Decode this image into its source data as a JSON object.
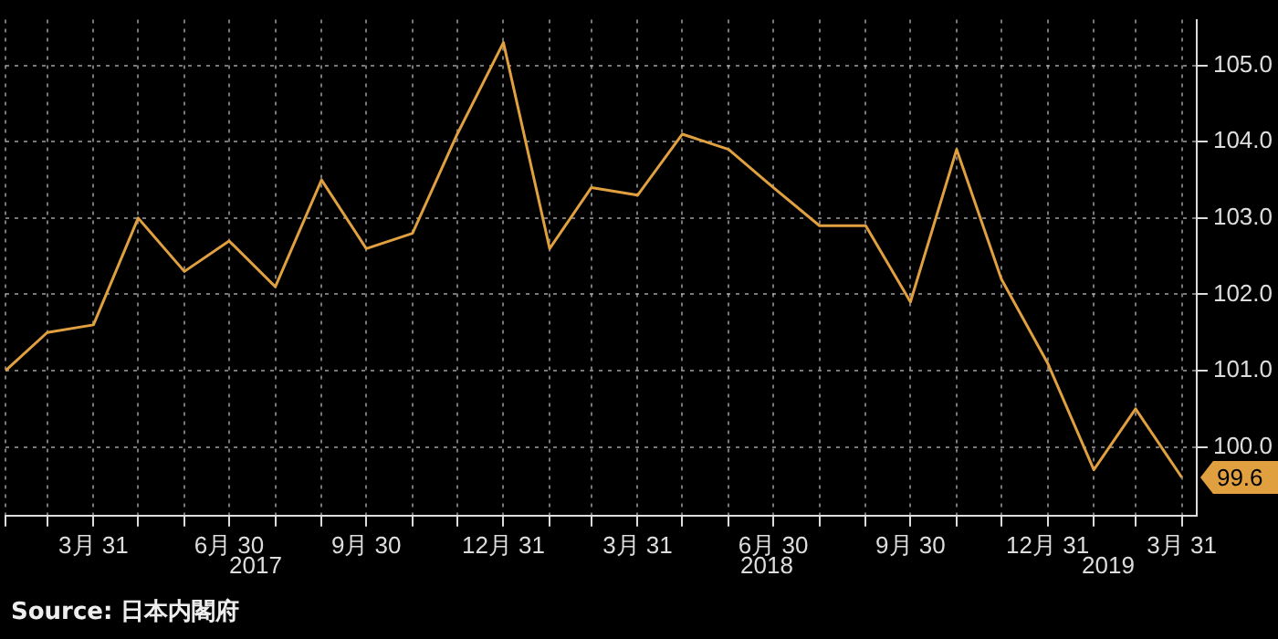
{
  "chart_data": {
    "type": "line",
    "x": [
      "2017-01-31",
      "2017-02-28",
      "2017-03-31",
      "2017-04-30",
      "2017-05-31",
      "2017-06-30",
      "2017-07-31",
      "2017-08-31",
      "2017-09-30",
      "2017-10-31",
      "2017-11-30",
      "2017-12-31",
      "2018-01-31",
      "2018-02-28",
      "2018-03-31",
      "2018-04-30",
      "2018-05-31",
      "2018-06-30",
      "2018-07-31",
      "2018-08-31",
      "2018-09-30",
      "2018-10-31",
      "2018-11-30",
      "2018-12-31",
      "2019-01-31",
      "2019-02-28",
      "2019-03-31"
    ],
    "series": [
      {
        "color": "#e0a040",
        "values": [
          101.0,
          101.5,
          101.6,
          103.0,
          102.3,
          102.7,
          102.1,
          103.5,
          102.6,
          102.8,
          104.1,
          105.3,
          102.6,
          103.4,
          103.3,
          104.1,
          103.9,
          103.4,
          102.9,
          102.9,
          101.9,
          103.9,
          102.2,
          101.1,
          99.7,
          100.5,
          99.6
        ],
        "value_labels": [
          null,
          null,
          null,
          null,
          null,
          null,
          null,
          null,
          null,
          null,
          null,
          null,
          null,
          null,
          null,
          null,
          null,
          null,
          null,
          null,
          null,
          null,
          null,
          null,
          null,
          null,
          "99.6"
        ]
      }
    ],
    "xlim": [
      "2017-01-31",
      "2019-04-10"
    ],
    "xticks": [
      {
        "value": "2017-01-31",
        "label": null
      },
      {
        "value": "2017-02-28",
        "label": null
      },
      {
        "value": "2017-03-31",
        "label": "3月 31"
      },
      {
        "value": "2017-04-30",
        "label": null
      },
      {
        "value": "2017-05-31",
        "label": null
      },
      {
        "value": "2017-06-30",
        "label": "6月 30"
      },
      {
        "value": "2017-07-31",
        "label": null
      },
      {
        "value": "2017-08-31",
        "label": null
      },
      {
        "value": "2017-09-30",
        "label": "9月 30"
      },
      {
        "value": "2017-10-31",
        "label": null
      },
      {
        "value": "2017-11-30",
        "label": null
      },
      {
        "value": "2017-12-31",
        "label": "12月 31"
      },
      {
        "value": "2018-01-31",
        "label": null
      },
      {
        "value": "2018-02-28",
        "label": null
      },
      {
        "value": "2018-03-31",
        "label": "3月 31"
      },
      {
        "value": "2018-04-30",
        "label": null
      },
      {
        "value": "2018-05-31",
        "label": null
      },
      {
        "value": "2018-06-30",
        "label": "6月 30"
      },
      {
        "value": "2018-07-31",
        "label": null
      },
      {
        "value": "2018-08-31",
        "label": null
      },
      {
        "value": "2018-09-30",
        "label": "9月 30"
      },
      {
        "value": "2018-10-31",
        "label": null
      },
      {
        "value": "2018-11-30",
        "label": null
      },
      {
        "value": "2018-12-31",
        "label": "12月 31"
      },
      {
        "value": "2019-01-31",
        "label": null
      },
      {
        "value": "2019-02-28",
        "label": null
      },
      {
        "value": "2019-03-31",
        "label": "3月 31"
      }
    ],
    "ylim": [
      99.1,
      105.6
    ],
    "yticks": [
      {
        "value": 100,
        "label": "100.0"
      },
      {
        "value": 101,
        "label": "101.0"
      },
      {
        "value": 102,
        "label": "102.0"
      },
      {
        "value": 103,
        "label": "103.0"
      },
      {
        "value": 104,
        "label": "104.0"
      },
      {
        "value": 105,
        "label": "105.0"
      }
    ],
    "grid": true,
    "legend": false,
    "marker": "none",
    "line_style": "solid",
    "annotations": [
      "2017",
      "2018",
      "2019",
      "Source: 日本内閣府"
    ]
  }
}
